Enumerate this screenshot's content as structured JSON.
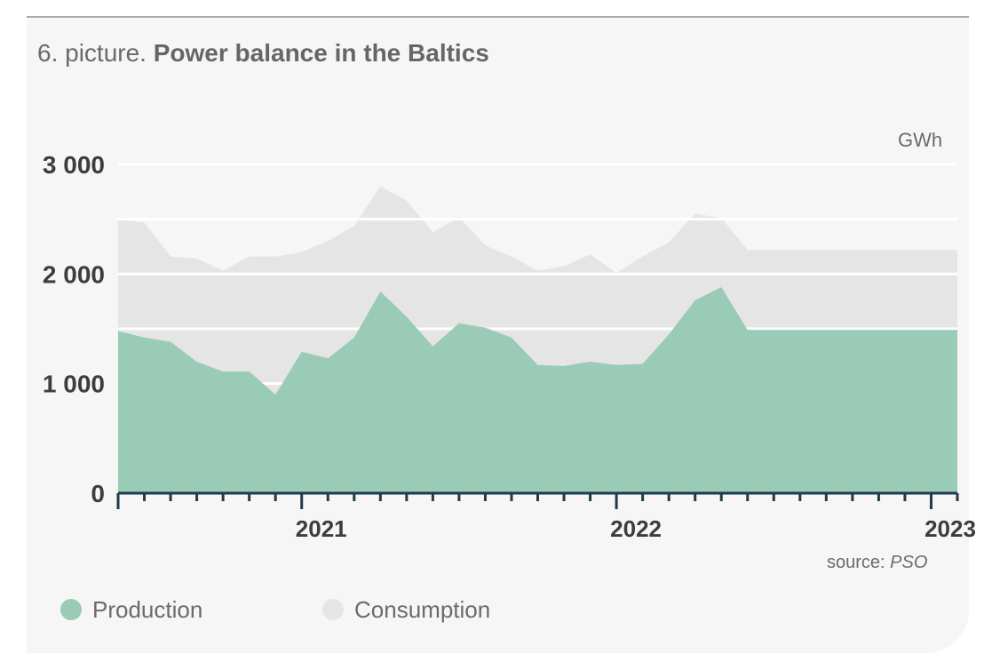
{
  "title": {
    "prefix": "6. picture.",
    "main": "Power balance in the Baltics"
  },
  "unit": "GWh",
  "source": {
    "label": "source:",
    "value": "PSO"
  },
  "colors": {
    "production": "#99cbb7",
    "consumption": "#e6e5e6",
    "grid": "#ffffff",
    "axis": "#1f3b4d"
  },
  "chart_data": {
    "type": "area",
    "x": [
      "2020-06",
      "2020-07",
      "2020-08",
      "2020-09",
      "2020-10",
      "2020-11",
      "2020-12",
      "2021-01",
      "2021-02",
      "2021-03",
      "2021-04",
      "2021-05",
      "2021-06",
      "2021-07",
      "2021-08",
      "2021-09",
      "2021-10",
      "2021-11",
      "2021-12",
      "2022-01",
      "2022-02",
      "2022-03",
      "2022-04",
      "2022-05",
      "2022-06",
      "2022-07",
      "2022-08",
      "2022-09",
      "2022-10",
      "2022-11",
      "2022-12",
      "2023-01",
      "2023-02"
    ],
    "year_labels": [
      {
        "label": "2021",
        "month": "2021-01"
      },
      {
        "label": "2022",
        "month": "2022-01"
      },
      {
        "label": "2023",
        "month": "2023-01"
      }
    ],
    "series": [
      {
        "name": "Consumption",
        "values": [
          2500,
          2470,
          2160,
          2140,
          2030,
          2160,
          2160,
          2200,
          2300,
          2440,
          2800,
          2670,
          2380,
          2520,
          2260,
          2160,
          2030,
          2070,
          2180,
          2010,
          2160,
          2290,
          2550,
          2510,
          2220,
          2220,
          2220,
          2220,
          2220,
          2220,
          2220,
          2220,
          2220
        ]
      },
      {
        "name": "Production",
        "values": [
          1480,
          1420,
          1380,
          1200,
          1110,
          1110,
          900,
          1290,
          1230,
          1420,
          1840,
          1610,
          1340,
          1550,
          1510,
          1420,
          1170,
          1160,
          1200,
          1170,
          1180,
          1450,
          1760,
          1880,
          1490,
          1490,
          1490,
          1490,
          1490,
          1490,
          1490,
          1490,
          1490
        ]
      }
    ],
    "y_ticks": [
      {
        "value": 0,
        "label": "0"
      },
      {
        "value": 1000,
        "label": "1 000"
      },
      {
        "value": 2000,
        "label": "2 000"
      },
      {
        "value": 3000,
        "label": "3 000"
      }
    ],
    "ylim": [
      0,
      3000
    ],
    "grid": true,
    "legend": "bottom-left"
  },
  "legend": [
    {
      "label": "Production",
      "color": "#99cbb7"
    },
    {
      "label": "Consumption",
      "color": "#e6e5e6"
    }
  ]
}
